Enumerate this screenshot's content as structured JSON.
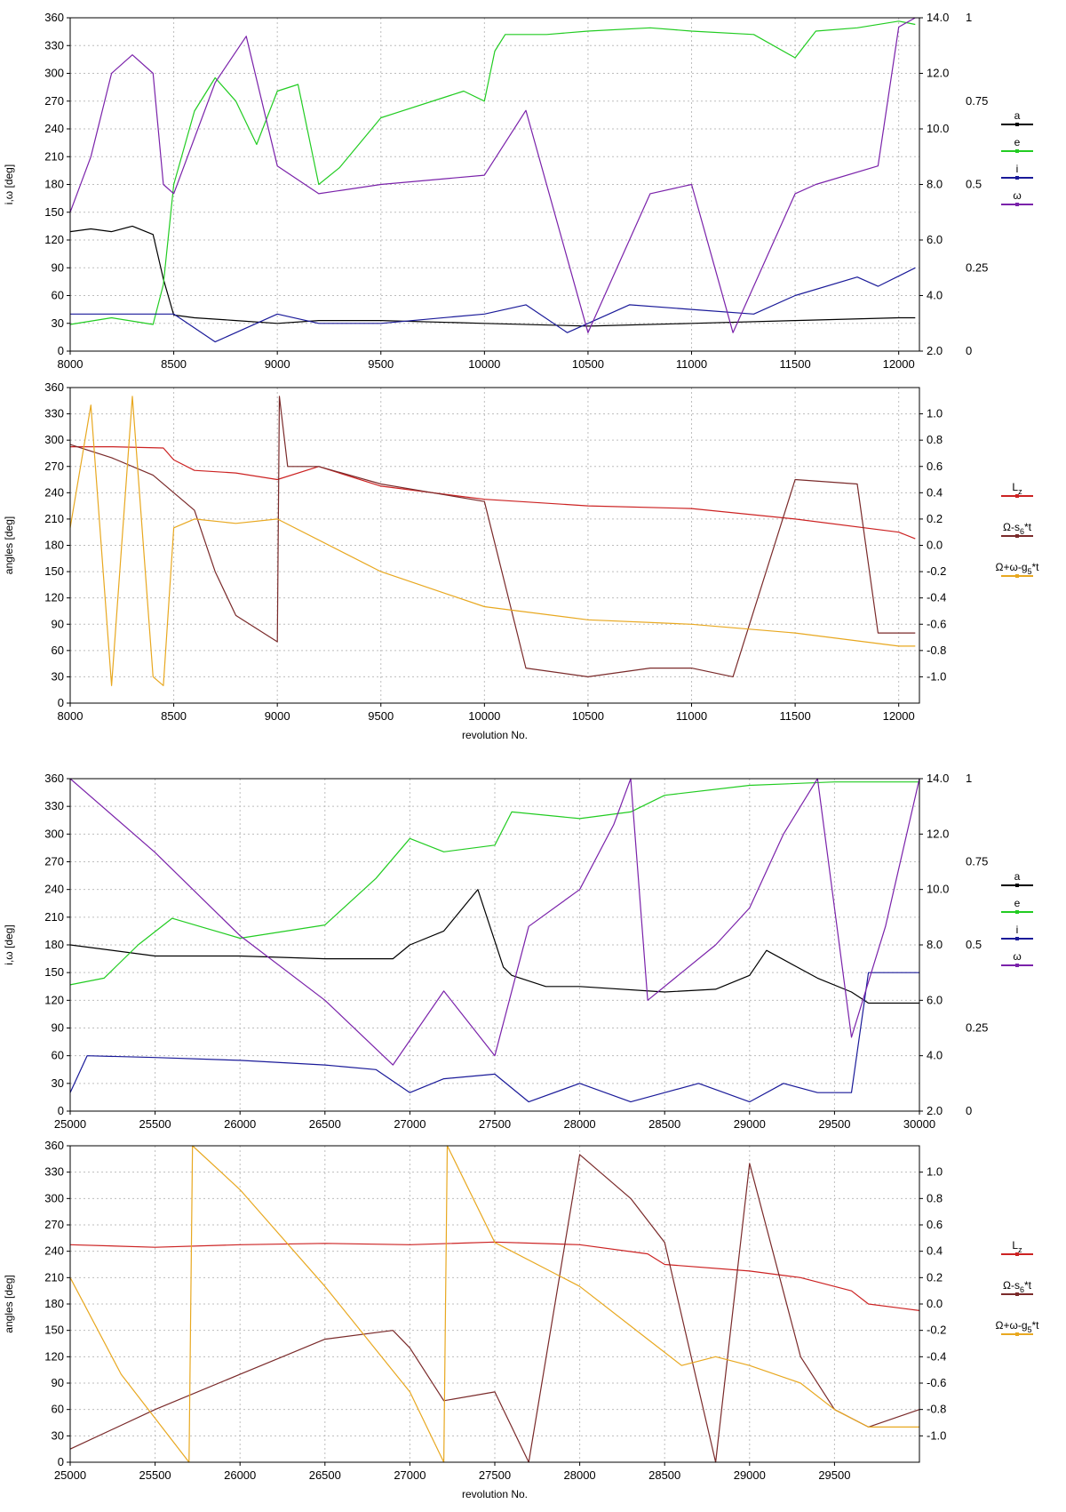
{
  "colors": {
    "a": "#000000",
    "e": "#22cc22",
    "i": "#1a1a99",
    "omega": "#7a22aa",
    "lz": "#cc2222",
    "node": "#7a2a2a",
    "peri": "#e8a820",
    "right_green": "#22cc22",
    "right_red": "#cc2222"
  },
  "chart_data": [
    {
      "type": "line",
      "ylabel": "i,ω [deg]",
      "xlim": [
        8000,
        12100
      ],
      "ylim": [
        0,
        360
      ],
      "x_ticks": [
        "8000",
        "8500",
        "9000",
        "9500",
        "10000",
        "10500",
        "11000",
        "11500",
        "12000"
      ],
      "y_ticks": [
        "0",
        "30",
        "60",
        "90",
        "120",
        "150",
        "180",
        "210",
        "240",
        "270",
        "300",
        "330",
        "360"
      ],
      "right_axis_ticks": [
        "2.0",
        "4.0",
        "6.0",
        "8.0",
        "10.0",
        "12.0",
        "14.0"
      ],
      "right_axis_range": [
        2.0,
        14.0
      ],
      "right2_axis_ticks": [
        "0",
        "0.25",
        "0.5",
        "0.75",
        "1"
      ],
      "right2_axis_range": [
        0,
        1
      ],
      "legend": [
        "a",
        "e",
        "i",
        "ω"
      ],
      "legend_position": "right",
      "grid": true,
      "series": [
        {
          "name": "a",
          "axis": "right",
          "x": [
            8000,
            8100,
            8200,
            8300,
            8400,
            8450,
            8500,
            8600,
            8800,
            9000,
            9200,
            9500,
            10000,
            10500,
            11000,
            11500,
            12000,
            12080
          ],
          "y": [
            6.3,
            6.4,
            6.3,
            6.5,
            6.2,
            4.6,
            3.3,
            3.2,
            3.1,
            3.0,
            3.1,
            3.1,
            3.0,
            2.9,
            3.0,
            3.1,
            3.2,
            3.2
          ]
        },
        {
          "name": "e",
          "axis": "right2",
          "x": [
            8000,
            8200,
            8400,
            8450,
            8500,
            8600,
            8700,
            8800,
            8900,
            9000,
            9100,
            9200,
            9300,
            9500,
            9800,
            9900,
            10000,
            10050,
            10100,
            10300,
            10500,
            10800,
            11000,
            11300,
            11500,
            11600,
            11800,
            12000,
            12080
          ],
          "y": [
            0.08,
            0.1,
            0.08,
            0.2,
            0.5,
            0.72,
            0.82,
            0.75,
            0.62,
            0.78,
            0.8,
            0.5,
            0.55,
            0.7,
            0.76,
            0.78,
            0.75,
            0.9,
            0.95,
            0.95,
            0.96,
            0.97,
            0.96,
            0.95,
            0.88,
            0.96,
            0.97,
            0.99,
            0.98
          ]
        },
        {
          "name": "i",
          "axis": "left",
          "x": [
            8000,
            8500,
            8700,
            8800,
            9000,
            9200,
            9500,
            10000,
            10200,
            10400,
            10700,
            11000,
            11300,
            11500,
            11800,
            11900,
            12080
          ],
          "y": [
            40,
            40,
            10,
            20,
            40,
            30,
            30,
            40,
            50,
            20,
            50,
            45,
            40,
            60,
            80,
            70,
            90
          ]
        },
        {
          "name": "ω",
          "axis": "left",
          "x": [
            8000,
            8100,
            8200,
            8300,
            8400,
            8450,
            8500,
            8700,
            8850,
            9000,
            9200,
            9500,
            10000,
            10200,
            10500,
            10800,
            11000,
            11200,
            11500,
            11600,
            11900,
            12000,
            12080
          ],
          "y": [
            150,
            210,
            300,
            320,
            300,
            180,
            170,
            290,
            340,
            200,
            170,
            180,
            190,
            260,
            20,
            170,
            180,
            20,
            170,
            180,
            200,
            350,
            360
          ]
        }
      ]
    },
    {
      "type": "line",
      "ylabel": "angles [deg]",
      "xlabel": "revolution No.",
      "xlim": [
        8000,
        12100
      ],
      "ylim": [
        0,
        360
      ],
      "x_ticks": [
        "8000",
        "8500",
        "9000",
        "9500",
        "10000",
        "10500",
        "11000",
        "11500",
        "12000"
      ],
      "y_ticks": [
        "0",
        "30",
        "60",
        "90",
        "120",
        "150",
        "180",
        "210",
        "240",
        "270",
        "300",
        "330",
        "360"
      ],
      "right_axis_ticks": [
        "-1.0",
        "-0.8",
        "-0.6",
        "-0.4",
        "-0.2",
        "0.0",
        "0.2",
        "0.4",
        "0.6",
        "0.8",
        "1.0"
      ],
      "right_axis_range": [
        -1.2,
        1.2
      ],
      "legend": [
        "L_z",
        "Ω-s_6*t",
        "Ω+ω-g_5*t"
      ],
      "legend_position": "right",
      "grid": true,
      "series": [
        {
          "name": "L_z",
          "axis": "right",
          "x": [
            8000,
            8200,
            8450,
            8500,
            8600,
            8800,
            9000,
            9200,
            9500,
            10000,
            10500,
            11000,
            11500,
            12000,
            12080
          ],
          "y": [
            0.75,
            0.75,
            0.74,
            0.65,
            0.57,
            0.55,
            0.5,
            0.6,
            0.45,
            0.35,
            0.3,
            0.28,
            0.2,
            0.1,
            0.05
          ]
        },
        {
          "name": "Ω-s_6*t",
          "axis": "left",
          "x": [
            8000,
            8200,
            8400,
            8600,
            8700,
            8800,
            9000,
            9010,
            9050,
            9200,
            9500,
            10000,
            10200,
            10500,
            10800,
            11000,
            11200,
            11500,
            11800,
            11900,
            12080
          ],
          "y": [
            295,
            280,
            260,
            220,
            150,
            100,
            70,
            350,
            270,
            270,
            250,
            230,
            40,
            30,
            40,
            40,
            30,
            255,
            250,
            80,
            80
          ]
        },
        {
          "name": "Ω+ω-g_5*t",
          "axis": "left",
          "x": [
            8000,
            8100,
            8200,
            8300,
            8400,
            8450,
            8500,
            8600,
            8800,
            9000,
            9500,
            10000,
            10500,
            11000,
            11500,
            12000,
            12080
          ],
          "y": [
            200,
            340,
            20,
            350,
            30,
            20,
            200,
            210,
            205,
            210,
            150,
            110,
            95,
            90,
            80,
            65,
            65
          ]
        }
      ]
    },
    {
      "type": "line",
      "ylabel": "i,ω [deg]",
      "xlim": [
        25000,
        30000
      ],
      "ylim": [
        0,
        360
      ],
      "x_ticks": [
        "25000",
        "25500",
        "26000",
        "26500",
        "27000",
        "27500",
        "28000",
        "28500",
        "29000",
        "29500",
        "30000"
      ],
      "y_ticks": [
        "0",
        "30",
        "60",
        "90",
        "120",
        "150",
        "180",
        "210",
        "240",
        "270",
        "300",
        "330",
        "360"
      ],
      "right_axis_ticks": [
        "2.0",
        "4.0",
        "6.0",
        "8.0",
        "10.0",
        "12.0",
        "14.0"
      ],
      "right_axis_range": [
        2.0,
        14.0
      ],
      "right2_axis_ticks": [
        "0",
        "0.25",
        "0.5",
        "0.75",
        "1"
      ],
      "right2_axis_range": [
        0,
        1
      ],
      "legend": [
        "a",
        "e",
        "i",
        "ω"
      ],
      "legend_position": "right",
      "grid": true,
      "series": [
        {
          "name": "a",
          "axis": "right",
          "x": [
            25000,
            25500,
            26000,
            26500,
            26900,
            27000,
            27200,
            27400,
            27550,
            27600,
            27800,
            28000,
            28500,
            28800,
            29000,
            29100,
            29400,
            29600,
            29700,
            30000
          ],
          "y": [
            8.0,
            7.6,
            7.6,
            7.5,
            7.5,
            8.0,
            8.5,
            10.0,
            7.2,
            6.9,
            6.5,
            6.5,
            6.3,
            6.4,
            6.9,
            7.8,
            6.8,
            6.3,
            5.9,
            5.9
          ]
        },
        {
          "name": "e",
          "axis": "right2",
          "x": [
            25000,
            25200,
            25400,
            25600,
            25800,
            26000,
            26500,
            26800,
            27000,
            27200,
            27500,
            27600,
            28000,
            28300,
            28500,
            29000,
            29500,
            30000
          ],
          "y": [
            0.38,
            0.4,
            0.5,
            0.58,
            0.55,
            0.52,
            0.56,
            0.7,
            0.82,
            0.78,
            0.8,
            0.9,
            0.88,
            0.9,
            0.95,
            0.98,
            0.99,
            0.99
          ]
        },
        {
          "name": "i",
          "axis": "left",
          "x": [
            25000,
            25100,
            25500,
            26000,
            26500,
            26800,
            27000,
            27200,
            27500,
            27700,
            28000,
            28300,
            28500,
            28700,
            29000,
            29200,
            29400,
            29600,
            29700,
            30000
          ],
          "y": [
            20,
            60,
            58,
            55,
            50,
            45,
            20,
            35,
            40,
            10,
            30,
            10,
            20,
            30,
            10,
            30,
            20,
            20,
            150,
            150
          ]
        },
        {
          "name": "ω",
          "axis": "left",
          "x": [
            25000,
            25500,
            26000,
            26500,
            26900,
            27200,
            27500,
            27700,
            28000,
            28200,
            28300,
            28400,
            28800,
            29000,
            29200,
            29400,
            29600,
            29800,
            30000
          ],
          "y": [
            360,
            280,
            190,
            120,
            50,
            130,
            60,
            200,
            240,
            310,
            360,
            120,
            180,
            220,
            300,
            360,
            80,
            200,
            360
          ]
        }
      ]
    },
    {
      "type": "line",
      "ylabel": "angles [deg]",
      "xlabel": "revolution No.",
      "xlim": [
        25000,
        30000
      ],
      "ylim": [
        0,
        360
      ],
      "x_ticks": [
        "25000",
        "25500",
        "26000",
        "26500",
        "27000",
        "27500",
        "28000",
        "28500",
        "29000",
        "29500"
      ],
      "y_ticks": [
        "0",
        "30",
        "60",
        "90",
        "120",
        "150",
        "180",
        "210",
        "240",
        "270",
        "300",
        "330",
        "360"
      ],
      "right_axis_ticks": [
        "-1.0",
        "-0.8",
        "-0.6",
        "-0.4",
        "-0.2",
        "0.0",
        "0.2",
        "0.4",
        "0.6",
        "0.8",
        "1.0"
      ],
      "right_axis_range": [
        -1.2,
        1.2
      ],
      "legend": [
        "L_z",
        "Ω-s_6*t",
        "Ω+ω-g_5*t"
      ],
      "legend_position": "right",
      "grid": true,
      "series": [
        {
          "name": "L_z",
          "axis": "right",
          "x": [
            25000,
            25500,
            26000,
            26500,
            27000,
            27500,
            28000,
            28400,
            28500,
            29000,
            29300,
            29600,
            29700,
            30000
          ],
          "y": [
            0.45,
            0.43,
            0.45,
            0.46,
            0.45,
            0.47,
            0.45,
            0.38,
            0.3,
            0.25,
            0.2,
            0.1,
            0.0,
            -0.05
          ]
        },
        {
          "name": "Ω-s_6*t",
          "axis": "left",
          "x": [
            25000,
            25500,
            26000,
            26500,
            26900,
            27000,
            27200,
            27500,
            27700,
            28000,
            28300,
            28500,
            28800,
            29000,
            29300,
            29500,
            29700,
            30000
          ],
          "y": [
            15,
            60,
            100,
            140,
            150,
            130,
            70,
            80,
            0,
            350,
            300,
            250,
            0,
            340,
            120,
            60,
            40,
            60
          ]
        },
        {
          "name": "Ω+ω-g_5*t",
          "axis": "left",
          "x": [
            25000,
            25300,
            25700,
            25720,
            26000,
            26500,
            27000,
            27200,
            27220,
            27500,
            28000,
            28400,
            28600,
            28800,
            29000,
            29300,
            29500,
            29700,
            30000
          ],
          "y": [
            210,
            100,
            0,
            360,
            310,
            200,
            80,
            0,
            360,
            250,
            200,
            140,
            110,
            120,
            110,
            90,
            60,
            40,
            40
          ]
        }
      ]
    }
  ]
}
